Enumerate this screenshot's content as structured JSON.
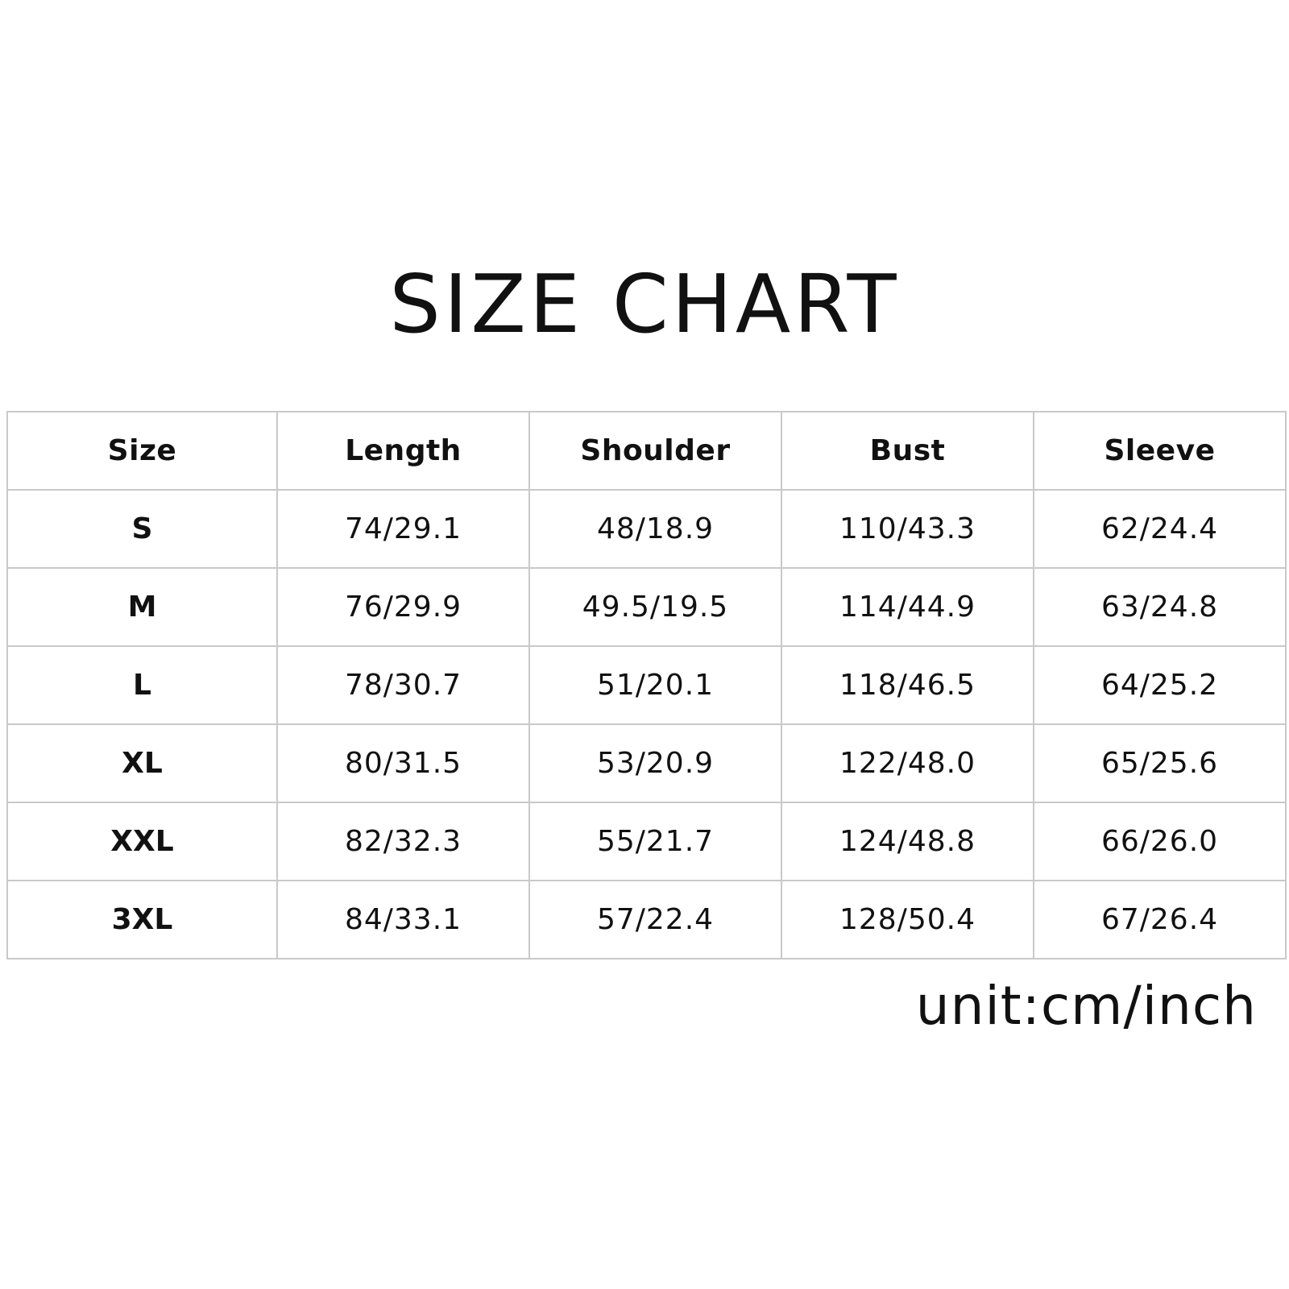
{
  "title": "SIZE CHART",
  "table": {
    "headers": [
      "Size",
      "Length",
      "Shoulder",
      "Bust",
      "Sleeve"
    ],
    "rows": [
      [
        "S",
        "74/29.1",
        "48/18.9",
        "110/43.3",
        "62/24.4"
      ],
      [
        "M",
        "76/29.9",
        "49.5/19.5",
        "114/44.9",
        "63/24.8"
      ],
      [
        "L",
        "78/30.7",
        "51/20.1",
        "118/46.5",
        "64/25.2"
      ],
      [
        "XL",
        "80/31.5",
        "53/20.9",
        "122/48.0",
        "65/25.6"
      ],
      [
        "XXL",
        "82/32.3",
        "55/21.7",
        "124/48.8",
        "66/26.0"
      ],
      [
        "3XL",
        "84/33.1",
        "57/22.4",
        "128/50.4",
        "67/26.4"
      ]
    ]
  },
  "unit_note": "unit:cm/inch",
  "colors": {
    "grid_line": "#c9c9c9",
    "text": "#111111",
    "background": "#ffffff"
  }
}
